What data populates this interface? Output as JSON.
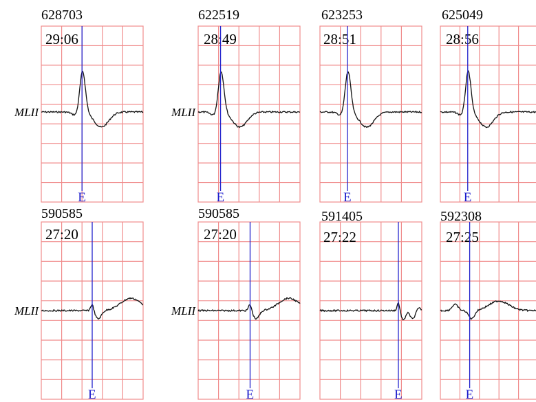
{
  "grid_color": "#f08c8c",
  "trace_color": "#111111",
  "marker_color": "#2222cc",
  "marker_label": "E",
  "panels": [
    {
      "id": "628703",
      "time": "29:06",
      "lead": "MLII",
      "shape": "pvc"
    },
    {
      "id": "622519",
      "time": "28:49",
      "lead": "MLII",
      "shape": "pvc"
    },
    {
      "id": "623253",
      "time": "28:51",
      "lead": "",
      "shape": "pvc"
    },
    {
      "id": "625049",
      "time": "28:56",
      "lead": "",
      "shape": "pvc"
    },
    {
      "id": "590585",
      "time": "27:20",
      "lead": "MLII",
      "shape": "wave"
    },
    {
      "id": "590585",
      "time": "27:20",
      "lead": "MLII",
      "shape": "wave"
    },
    {
      "id": "591405",
      "time": "27:22",
      "lead": "",
      "shape": "flat_dip"
    },
    {
      "id": "592308",
      "time": "27:25",
      "lead": "",
      "shape": "early_wave"
    }
  ]
}
